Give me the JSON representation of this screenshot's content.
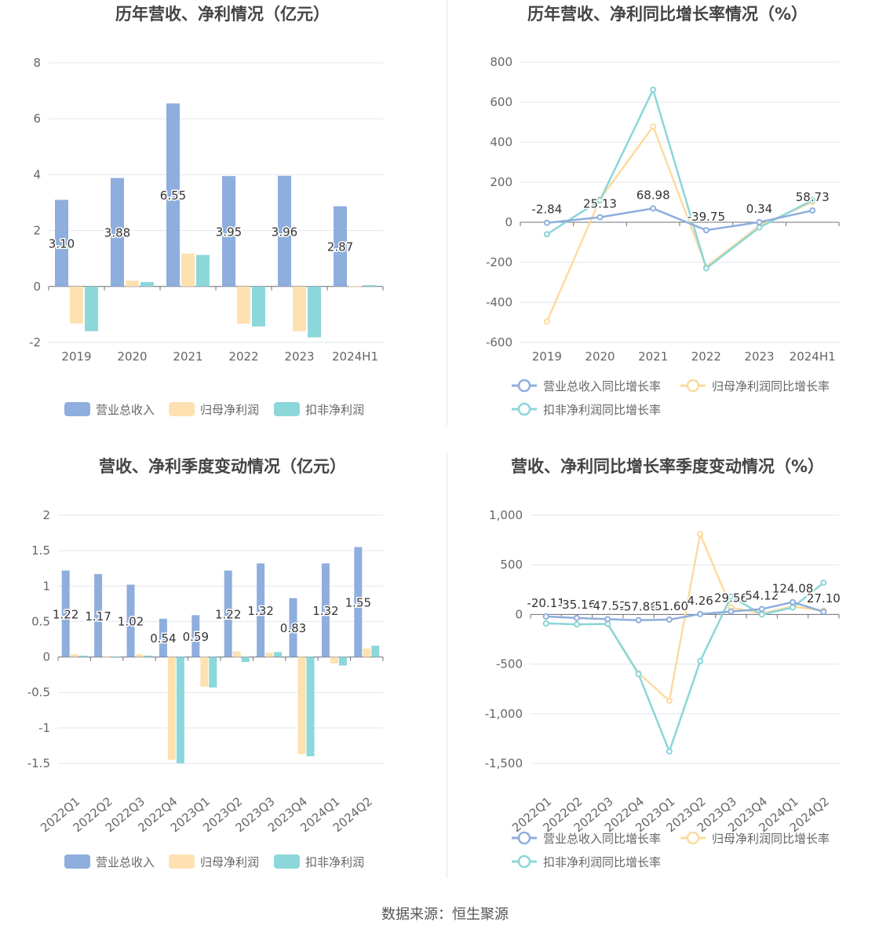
{
  "footer": "数据来源：恒生聚源",
  "colors": {
    "revenue": "#8eaedd",
    "netProfit": "#fee1b1",
    "deductProfit": "#8cd7da",
    "revenueLine": "#8eaedd",
    "netLine": "#fcdba0",
    "deductLine": "#8bd6d9"
  },
  "chart_data": [
    {
      "id": "annual-bar",
      "type": "bar",
      "title": "历年营收、净利情况（亿元）",
      "categories": [
        "2019",
        "2020",
        "2021",
        "2022",
        "2023",
        "2024H1"
      ],
      "series": [
        {
          "name": "营业总收入",
          "values": [
            3.1,
            3.88,
            6.55,
            3.95,
            3.96,
            2.87
          ],
          "labels": [
            "3.10",
            "3.88",
            "6.55",
            "3.95",
            "3.96",
            "2.87"
          ]
        },
        {
          "name": "归母净利润",
          "values": [
            -1.32,
            0.21,
            1.18,
            -1.33,
            -1.6,
            0.02
          ]
        },
        {
          "name": "扣非净利润",
          "values": [
            -1.6,
            0.16,
            1.13,
            -1.43,
            -1.82,
            0.05
          ]
        }
      ],
      "ylim": [
        -2,
        8
      ],
      "yticks": [
        "-2",
        "0",
        "2",
        "4",
        "6",
        "8"
      ],
      "legend": "bottom"
    },
    {
      "id": "annual-growth",
      "type": "line",
      "title": "历年营收、净利同比增长率情况（%）",
      "categories": [
        "2019",
        "2020",
        "2021",
        "2022",
        "2023",
        "2024H1"
      ],
      "series": [
        {
          "name": "营业总收入同比增长率",
          "values": [
            -2.84,
            25.13,
            68.98,
            -39.75,
            0.34,
            58.73
          ],
          "labels": [
            "-2.84",
            "25.13",
            "68.98",
            "-39.75",
            "0.34",
            "58.73"
          ]
        },
        {
          "name": "归母净利润同比增长率",
          "values": [
            -496,
            115,
            478,
            -222,
            -18,
            101
          ]
        },
        {
          "name": "扣非净利润同比增长率",
          "values": [
            -60,
            110,
            662,
            -230,
            -26,
            110
          ]
        }
      ],
      "ylim": [
        -600,
        800
      ],
      "yticks": [
        "-600",
        "-400",
        "-200",
        "0",
        "200",
        "400",
        "600",
        "800"
      ],
      "legend": "bottom"
    },
    {
      "id": "quarter-bar",
      "type": "bar",
      "title": "营收、净利季度变动情况（亿元）",
      "categories": [
        "2022Q1",
        "2022Q2",
        "2022Q3",
        "2022Q4",
        "2023Q1",
        "2023Q2",
        "2023Q3",
        "2023Q4",
        "2024Q1",
        "2024Q2"
      ],
      "series": [
        {
          "name": "营业总收入",
          "values": [
            1.22,
            1.17,
            1.02,
            0.54,
            0.59,
            1.22,
            1.32,
            0.83,
            1.32,
            1.55
          ],
          "labels": [
            "1.22",
            "1.17",
            "1.02",
            "0.54",
            "0.59",
            "1.22",
            "1.32",
            "0.83",
            "1.32",
            "1.55"
          ]
        },
        {
          "name": "归母净利润",
          "values": [
            0.04,
            0.01,
            0.04,
            -1.45,
            -0.42,
            0.08,
            0.06,
            -1.37,
            -0.09,
            0.12
          ]
        },
        {
          "name": "扣非净利润",
          "values": [
            0.02,
            -0.01,
            0.02,
            -1.5,
            -0.43,
            -0.07,
            0.07,
            -1.4,
            -0.12,
            0.16
          ]
        }
      ],
      "ylim": [
        -1.5,
        2
      ],
      "yticks": [
        "-1.5",
        "-1",
        "-0.5",
        "0",
        "0.5",
        "1",
        "1.5",
        "2"
      ],
      "legend": "bottom"
    },
    {
      "id": "quarter-growth",
      "type": "line",
      "title": "营收、净利同比增长率季度变动情况（%）",
      "categories": [
        "2022Q1",
        "2022Q2",
        "2022Q3",
        "2022Q4",
        "2023Q1",
        "2023Q2",
        "2023Q3",
        "2023Q4",
        "2024Q1",
        "2024Q2"
      ],
      "series": [
        {
          "name": "营业总收入同比增长率",
          "values": [
            -20.11,
            -35.16,
            -47.52,
            -57.86,
            -51.6,
            4.26,
            29.56,
            54.12,
            124.08,
            27.1
          ],
          "labels": [
            "-20.11",
            "-35.16",
            "-47.52",
            "-57.86",
            "-51.60",
            "4.26",
            "29.56",
            "54.12",
            "124.08",
            "27.10"
          ]
        },
        {
          "name": "归母净利润同比增长率",
          "values": [
            -90,
            -100,
            -95,
            -590,
            -870,
            810,
            70,
            10,
            80,
            40
          ]
        },
        {
          "name": "扣非净利润同比增长率",
          "values": [
            -90,
            -100,
            -95,
            -600,
            -1380,
            -470,
            180,
            0,
            70,
            320
          ]
        }
      ],
      "ylim": [
        -1500,
        1000
      ],
      "yticks": [
        "-1,500",
        "-1,000",
        "-500",
        "0",
        "500",
        "1,000"
      ],
      "legend": "bottom"
    }
  ]
}
